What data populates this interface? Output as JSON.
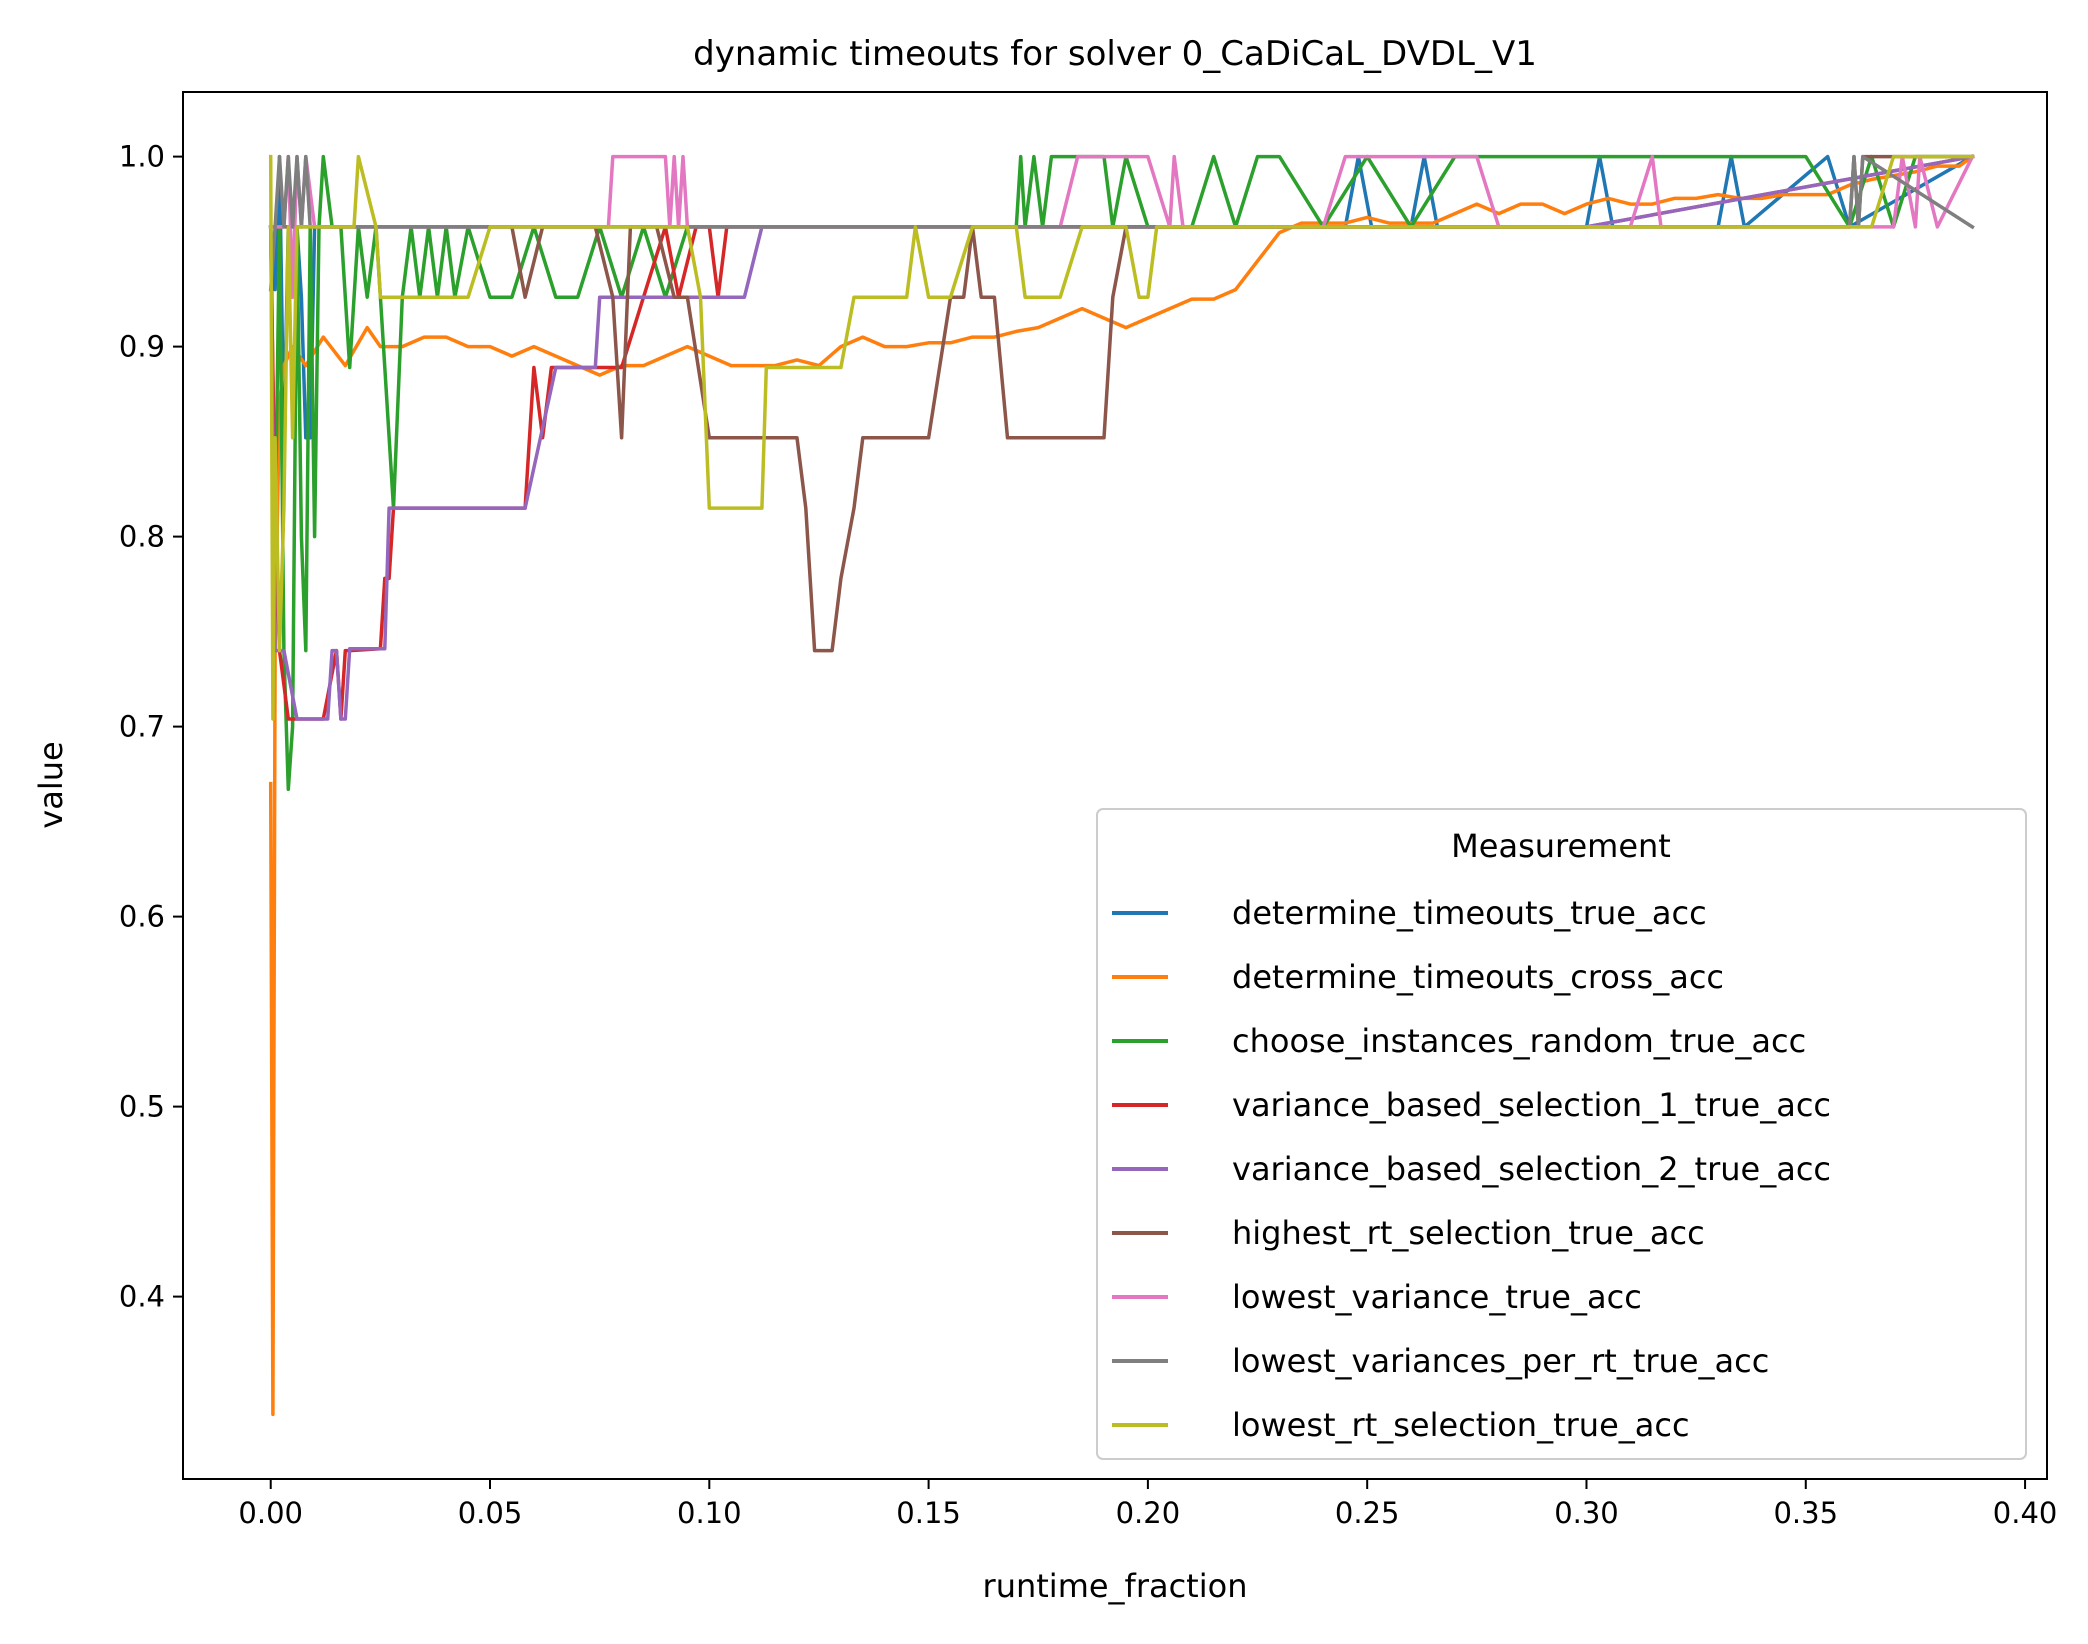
{
  "chart_data": {
    "type": "line",
    "title": "dynamic timeouts for solver 0_CaDiCaL_DVDL_V1",
    "xlabel": "runtime_fraction",
    "ylabel": "value",
    "xlim": [
      -0.02,
      0.405
    ],
    "ylim": [
      0.304,
      1.034
    ],
    "xticks": [
      0.0,
      0.05,
      0.1,
      0.15,
      0.2,
      0.25,
      0.3,
      0.35,
      0.4
    ],
    "xtick_labels": [
      "0.00",
      "0.05",
      "0.10",
      "0.15",
      "0.20",
      "0.25",
      "0.30",
      "0.35",
      "0.40"
    ],
    "yticks": [
      0.4,
      0.5,
      0.6,
      0.7,
      0.8,
      0.9,
      1.0
    ],
    "ytick_labels": [
      "0.4",
      "0.5",
      "0.6",
      "0.7",
      "0.8",
      "0.9",
      "1.0"
    ],
    "grid": false,
    "legend": {
      "title": "Measurement",
      "location": "lower-right"
    },
    "series": [
      {
        "name": "determine_timeouts_true_acc",
        "color": "#1f77b4",
        "x": [
          0.0,
          0.001,
          0.002,
          0.003,
          0.004,
          0.005,
          0.006,
          0.007,
          0.008,
          0.009,
          0.01,
          0.02,
          0.05,
          0.1,
          0.15,
          0.2,
          0.245,
          0.248,
          0.251,
          0.26,
          0.263,
          0.266,
          0.3,
          0.303,
          0.306,
          0.33,
          0.333,
          0.336,
          0.355,
          0.36,
          0.388
        ],
        "y": [
          0.963,
          0.93,
          1.0,
          0.85,
          0.963,
          0.963,
          0.963,
          0.926,
          0.852,
          0.852,
          0.963,
          0.963,
          0.963,
          0.963,
          0.963,
          0.963,
          0.963,
          1.0,
          0.963,
          0.963,
          1.0,
          0.963,
          0.963,
          1.0,
          0.963,
          0.963,
          1.0,
          0.963,
          1.0,
          0.963,
          1.0
        ]
      },
      {
        "name": "determine_timeouts_cross_acc",
        "color": "#ff7f0e",
        "x": [
          0.0,
          0.0005,
          0.001,
          0.002,
          0.003,
          0.005,
          0.008,
          0.012,
          0.017,
          0.022,
          0.025,
          0.03,
          0.035,
          0.04,
          0.045,
          0.05,
          0.055,
          0.06,
          0.065,
          0.07,
          0.075,
          0.08,
          0.085,
          0.09,
          0.095,
          0.1,
          0.105,
          0.11,
          0.115,
          0.12,
          0.125,
          0.13,
          0.135,
          0.14,
          0.145,
          0.15,
          0.155,
          0.16,
          0.165,
          0.17,
          0.175,
          0.18,
          0.185,
          0.19,
          0.195,
          0.2,
          0.205,
          0.21,
          0.215,
          0.22,
          0.225,
          0.23,
          0.235,
          0.24,
          0.245,
          0.25,
          0.255,
          0.26,
          0.265,
          0.27,
          0.275,
          0.28,
          0.285,
          0.29,
          0.295,
          0.3,
          0.305,
          0.31,
          0.315,
          0.32,
          0.325,
          0.33,
          0.335,
          0.34,
          0.345,
          0.35,
          0.355,
          0.36,
          0.365,
          0.37,
          0.375,
          0.38,
          0.385,
          0.388
        ],
        "y": [
          0.67,
          0.338,
          0.74,
          0.87,
          0.89,
          0.9,
          0.89,
          0.905,
          0.89,
          0.91,
          0.9,
          0.9,
          0.905,
          0.905,
          0.9,
          0.9,
          0.895,
          0.9,
          0.895,
          0.89,
          0.885,
          0.89,
          0.89,
          0.895,
          0.9,
          0.895,
          0.89,
          0.89,
          0.89,
          0.893,
          0.89,
          0.9,
          0.905,
          0.9,
          0.9,
          0.902,
          0.902,
          0.905,
          0.905,
          0.908,
          0.91,
          0.915,
          0.92,
          0.915,
          0.91,
          0.915,
          0.92,
          0.925,
          0.925,
          0.93,
          0.945,
          0.96,
          0.965,
          0.965,
          0.965,
          0.968,
          0.965,
          0.965,
          0.965,
          0.97,
          0.975,
          0.97,
          0.975,
          0.975,
          0.97,
          0.975,
          0.978,
          0.975,
          0.975,
          0.978,
          0.978,
          0.98,
          0.978,
          0.978,
          0.98,
          0.98,
          0.98,
          0.985,
          0.988,
          0.99,
          0.992,
          0.995,
          0.995,
          1.0
        ]
      },
      {
        "name": "choose_instances_random_true_acc",
        "color": "#2ca02c",
        "x": [
          0.0,
          0.001,
          0.002,
          0.003,
          0.004,
          0.005,
          0.006,
          0.007,
          0.008,
          0.009,
          0.01,
          0.011,
          0.012,
          0.014,
          0.016,
          0.018,
          0.02,
          0.022,
          0.024,
          0.026,
          0.028,
          0.03,
          0.032,
          0.034,
          0.036,
          0.038,
          0.04,
          0.042,
          0.045,
          0.05,
          0.055,
          0.06,
          0.065,
          0.07,
          0.075,
          0.08,
          0.085,
          0.09,
          0.095,
          0.1,
          0.105,
          0.11,
          0.15,
          0.17,
          0.171,
          0.172,
          0.174,
          0.176,
          0.178,
          0.185,
          0.19,
          0.192,
          0.195,
          0.2,
          0.21,
          0.215,
          0.22,
          0.225,
          0.23,
          0.24,
          0.25,
          0.26,
          0.27,
          0.28,
          0.35,
          0.36,
          0.365,
          0.37,
          0.375,
          0.38,
          0.388
        ],
        "y": [
          0.963,
          0.8,
          0.963,
          0.74,
          0.667,
          0.7,
          0.963,
          0.8,
          0.74,
          0.963,
          0.8,
          0.963,
          1.0,
          0.963,
          0.963,
          0.889,
          0.963,
          0.926,
          0.963,
          0.889,
          0.815,
          0.926,
          0.963,
          0.926,
          0.963,
          0.926,
          0.963,
          0.926,
          0.963,
          0.926,
          0.926,
          0.963,
          0.926,
          0.926,
          0.963,
          0.926,
          0.963,
          0.926,
          0.963,
          0.963,
          0.963,
          0.963,
          0.963,
          0.963,
          1.0,
          0.963,
          1.0,
          0.963,
          1.0,
          1.0,
          1.0,
          0.963,
          1.0,
          0.963,
          0.963,
          1.0,
          0.963,
          1.0,
          1.0,
          0.963,
          1.0,
          0.963,
          1.0,
          1.0,
          1.0,
          0.963,
          1.0,
          0.963,
          1.0,
          1.0,
          1.0
        ]
      },
      {
        "name": "variance_based_selection_1_true_acc",
        "color": "#d62728",
        "x": [
          0.0,
          0.001,
          0.002,
          0.004,
          0.006,
          0.008,
          0.012,
          0.015,
          0.016,
          0.017,
          0.018,
          0.025,
          0.026,
          0.027,
          0.028,
          0.03,
          0.045,
          0.058,
          0.06,
          0.062,
          0.064,
          0.07,
          0.08,
          0.085,
          0.09,
          0.093,
          0.097,
          0.1,
          0.102,
          0.104,
          0.11,
          0.2,
          0.3,
          0.388
        ],
        "y": [
          0.963,
          0.81,
          0.74,
          0.704,
          0.704,
          0.704,
          0.704,
          0.74,
          0.704,
          0.74,
          0.74,
          0.741,
          0.778,
          0.778,
          0.815,
          0.815,
          0.815,
          0.815,
          0.889,
          0.852,
          0.889,
          0.889,
          0.889,
          0.926,
          0.963,
          0.926,
          0.963,
          0.963,
          0.926,
          0.963,
          0.963,
          0.963,
          0.963,
          1.0
        ]
      },
      {
        "name": "variance_based_selection_2_true_acc",
        "color": "#9467bd",
        "x": [
          0.0,
          0.001,
          0.003,
          0.006,
          0.013,
          0.014,
          0.015,
          0.016,
          0.017,
          0.018,
          0.02,
          0.026,
          0.027,
          0.028,
          0.058,
          0.065,
          0.074,
          0.075,
          0.08,
          0.095,
          0.1,
          0.108,
          0.112,
          0.2,
          0.3,
          0.388
        ],
        "y": [
          0.963,
          0.74,
          0.74,
          0.704,
          0.704,
          0.74,
          0.74,
          0.704,
          0.704,
          0.741,
          0.741,
          0.741,
          0.815,
          0.815,
          0.815,
          0.889,
          0.889,
          0.926,
          0.926,
          0.926,
          0.926,
          0.926,
          0.963,
          0.963,
          0.963,
          1.0
        ]
      },
      {
        "name": "highest_rt_selection_true_acc",
        "color": "#8c564b",
        "x": [
          0.0,
          0.01,
          0.05,
          0.055,
          0.058,
          0.062,
          0.068,
          0.074,
          0.078,
          0.08,
          0.082,
          0.088,
          0.092,
          0.095,
          0.1,
          0.12,
          0.122,
          0.124,
          0.126,
          0.128,
          0.13,
          0.133,
          0.135,
          0.14,
          0.15,
          0.155,
          0.158,
          0.16,
          0.162,
          0.165,
          0.168,
          0.17,
          0.19,
          0.192,
          0.195,
          0.2,
          0.25,
          0.3,
          0.36,
          0.361,
          0.362,
          0.363,
          0.388
        ],
        "y": [
          0.963,
          0.963,
          0.963,
          0.963,
          0.926,
          0.963,
          0.963,
          0.963,
          0.926,
          0.852,
          0.963,
          0.963,
          0.926,
          0.926,
          0.852,
          0.852,
          0.815,
          0.74,
          0.74,
          0.74,
          0.778,
          0.815,
          0.852,
          0.852,
          0.852,
          0.926,
          0.926,
          0.963,
          0.926,
          0.926,
          0.852,
          0.852,
          0.852,
          0.926,
          0.963,
          0.963,
          0.963,
          0.963,
          0.963,
          1.0,
          0.963,
          1.0,
          1.0
        ]
      },
      {
        "name": "lowest_variance_true_acc",
        "color": "#e377c2",
        "x": [
          0.0,
          0.003,
          0.004,
          0.005,
          0.006,
          0.007,
          0.008,
          0.01,
          0.077,
          0.078,
          0.09,
          0.091,
          0.092,
          0.093,
          0.094,
          0.095,
          0.18,
          0.184,
          0.188,
          0.19,
          0.2,
          0.205,
          0.206,
          0.208,
          0.225,
          0.24,
          0.245,
          0.275,
          0.28,
          0.29,
          0.31,
          0.315,
          0.317,
          0.36,
          0.37,
          0.372,
          0.375,
          0.376,
          0.38,
          0.388
        ],
        "y": [
          0.963,
          0.963,
          1.0,
          0.926,
          1.0,
          0.963,
          1.0,
          0.963,
          0.963,
          1.0,
          1.0,
          0.963,
          1.0,
          0.963,
          1.0,
          0.963,
          0.963,
          1.0,
          1.0,
          1.0,
          1.0,
          0.963,
          1.0,
          0.963,
          0.963,
          0.963,
          1.0,
          1.0,
          0.963,
          0.963,
          0.963,
          1.0,
          0.963,
          0.963,
          0.963,
          1.0,
          0.963,
          1.0,
          0.963,
          1.0
        ]
      },
      {
        "name": "lowest_variances_per_rt_true_acc",
        "color": "#7f7f7f",
        "x": [
          0.0,
          0.001,
          0.002,
          0.003,
          0.004,
          0.005,
          0.006,
          0.007,
          0.008,
          0.009,
          0.01,
          0.1,
          0.2,
          0.3,
          0.36,
          0.361,
          0.362,
          0.363,
          0.388
        ],
        "y": [
          0.93,
          0.963,
          1.0,
          0.963,
          1.0,
          0.963,
          1.0,
          0.963,
          1.0,
          0.963,
          0.963,
          0.963,
          0.963,
          0.963,
          0.963,
          1.0,
          0.963,
          1.0,
          0.963
        ]
      },
      {
        "name": "lowest_rt_selection_true_acc",
        "color": "#bcbd22",
        "x": [
          0.0,
          0.0005,
          0.001,
          0.002,
          0.003,
          0.004,
          0.005,
          0.006,
          0.007,
          0.019,
          0.02,
          0.024,
          0.025,
          0.03,
          0.035,
          0.04,
          0.045,
          0.05,
          0.06,
          0.095,
          0.098,
          0.1,
          0.112,
          0.113,
          0.115,
          0.13,
          0.133,
          0.135,
          0.14,
          0.145,
          0.147,
          0.15,
          0.155,
          0.16,
          0.17,
          0.172,
          0.18,
          0.185,
          0.195,
          0.198,
          0.2,
          0.202,
          0.21,
          0.25,
          0.3,
          0.365,
          0.37,
          0.372,
          0.388
        ],
        "y": [
          1.0,
          0.704,
          0.852,
          0.74,
          0.815,
          0.963,
          0.852,
          0.963,
          0.963,
          0.963,
          1.0,
          0.963,
          0.926,
          0.926,
          0.926,
          0.926,
          0.926,
          0.963,
          0.963,
          0.963,
          0.926,
          0.815,
          0.815,
          0.889,
          0.889,
          0.889,
          0.926,
          0.926,
          0.926,
          0.926,
          0.963,
          0.926,
          0.926,
          0.963,
          0.963,
          0.926,
          0.926,
          0.963,
          0.963,
          0.926,
          0.926,
          0.963,
          0.963,
          0.963,
          0.963,
          0.963,
          1.0,
          1.0,
          1.0
        ]
      }
    ]
  }
}
